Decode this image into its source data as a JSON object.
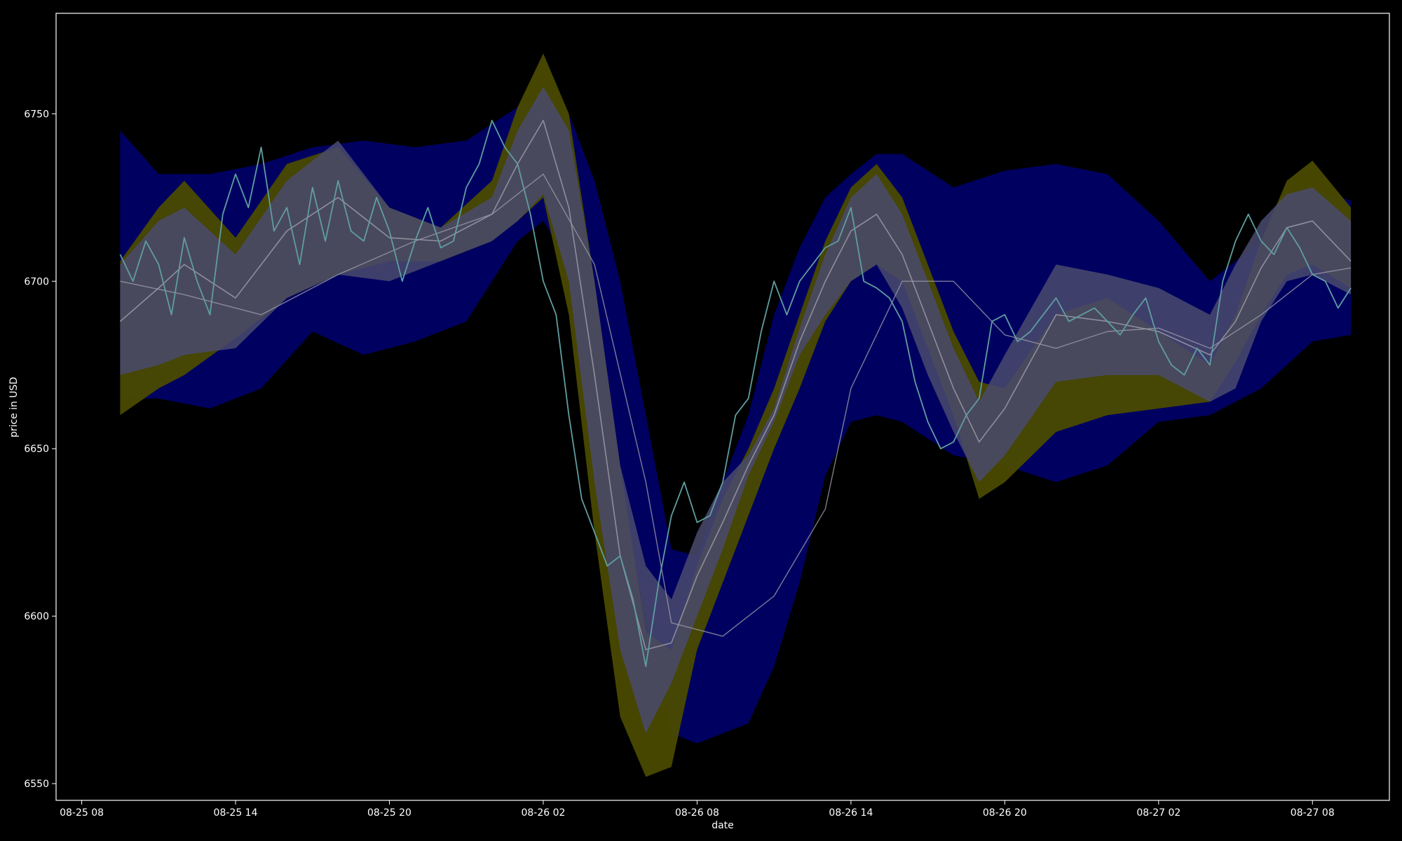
{
  "chart_data": {
    "type": "area",
    "title": "",
    "xlabel": "date",
    "ylabel": "price in USD",
    "xlim": [
      "2018-08-25 07:00",
      "2018-08-27 11:00"
    ],
    "ylim": [
      6545,
      6780
    ],
    "grid": false,
    "legend": "none",
    "x_ticks": [
      "08-25 08",
      "08-25 14",
      "08-25 20",
      "08-26 02",
      "08-26 08",
      "08-26 14",
      "08-26 20",
      "08-27 02",
      "08-27 08"
    ],
    "y_ticks": [
      6550,
      6600,
      6650,
      6700,
      6750
    ],
    "colors": {
      "background": "#000000",
      "frame": "#ffffff",
      "text": "#ffffff",
      "outer_band": "#000066",
      "yellow_band": "#4a4a00",
      "inner_band": "#4a4a6e",
      "price_line": "#5f9ea0",
      "mean_line": "#9a9aa6"
    },
    "series": [
      {
        "role": "outer-band",
        "x": [
          "2018-08-25 09:30",
          "2018-08-25 11:00",
          "2018-08-25 13:00",
          "2018-08-25 15:00",
          "2018-08-25 17:00",
          "2018-08-25 19:00",
          "2018-08-25 21:00",
          "2018-08-25 23:00",
          "2018-08-26 01:00",
          "2018-08-26 02:00",
          "2018-08-26 03:00",
          "2018-08-26 04:00",
          "2018-08-26 05:00",
          "2018-08-26 06:00",
          "2018-08-26 07:00",
          "2018-08-26 08:00",
          "2018-08-26 09:00",
          "2018-08-26 10:00",
          "2018-08-26 11:00",
          "2018-08-26 12:00",
          "2018-08-26 13:00",
          "2018-08-26 14:00",
          "2018-08-26 15:00",
          "2018-08-26 16:00",
          "2018-08-26 18:00",
          "2018-08-26 20:00",
          "2018-08-26 22:00",
          "2018-08-27 00:00",
          "2018-08-27 02:00",
          "2018-08-27 04:00",
          "2018-08-27 06:00",
          "2018-08-27 08:00",
          "2018-08-27 09:30"
        ],
        "upper": [
          6745,
          6732,
          6732,
          6735,
          6740,
          6742,
          6740,
          6742,
          6752,
          6756,
          6750,
          6730,
          6700,
          6660,
          6620,
          6618,
          6640,
          6660,
          6690,
          6710,
          6725,
          6732,
          6738,
          6738,
          6728,
          6733,
          6735,
          6732,
          6718,
          6700,
          6712,
          6728,
          6724
        ],
        "lower": [
          6665,
          6665,
          6662,
          6668,
          6685,
          6678,
          6682,
          6688,
          6712,
          6718,
          6705,
          6680,
          6640,
          6600,
          6565,
          6562,
          6565,
          6568,
          6585,
          6610,
          6642,
          6658,
          6660,
          6658,
          6648,
          6645,
          6640,
          6645,
          6658,
          6660,
          6668,
          6682,
          6684
        ]
      },
      {
        "role": "yellow-band",
        "x": [
          "2018-08-25 09:30",
          "2018-08-25 11:00",
          "2018-08-25 12:00",
          "2018-08-25 14:00",
          "2018-08-25 16:00",
          "2018-08-25 18:00",
          "2018-08-25 20:00",
          "2018-08-25 22:00",
          "2018-08-26 00:00",
          "2018-08-26 01:00",
          "2018-08-26 02:00",
          "2018-08-26 03:00",
          "2018-08-26 04:00",
          "2018-08-26 05:00",
          "2018-08-26 06:00",
          "2018-08-26 07:00",
          "2018-08-26 08:00",
          "2018-08-26 09:00",
          "2018-08-26 10:00",
          "2018-08-26 11:00",
          "2018-08-26 12:00",
          "2018-08-26 13:00",
          "2018-08-26 14:00",
          "2018-08-26 15:00",
          "2018-08-26 16:00",
          "2018-08-26 17:00",
          "2018-08-26 18:00",
          "2018-08-26 19:00",
          "2018-08-26 20:00",
          "2018-08-26 22:00",
          "2018-08-27 00:00",
          "2018-08-27 02:00",
          "2018-08-27 04:00",
          "2018-08-27 05:00",
          "2018-08-27 06:00",
          "2018-08-27 07:00",
          "2018-08-27 08:00",
          "2018-08-27 09:30"
        ],
        "upper": [
          6706,
          6722,
          6730,
          6713,
          6735,
          6740,
          6722,
          6716,
          6730,
          6752,
          6768,
          6750,
          6700,
          6645,
          6595,
          6590,
          6615,
          6635,
          6650,
          6668,
          6690,
          6712,
          6728,
          6735,
          6725,
          6705,
          6685,
          6670,
          6668,
          6690,
          6695,
          6685,
          6675,
          6690,
          6712,
          6730,
          6736,
          6722
        ],
        "lower": [
          6660,
          6668,
          6672,
          6683,
          6695,
          6702,
          6706,
          6706,
          6712,
          6718,
          6725,
          6690,
          6625,
          6570,
          6552,
          6555,
          6590,
          6610,
          6630,
          6650,
          6668,
          6688,
          6700,
          6705,
          6700,
          6680,
          6660,
          6635,
          6640,
          6655,
          6660,
          6662,
          6664,
          6676,
          6690,
          6702,
          6705,
          6698
        ]
      },
      {
        "role": "inner-band",
        "x": [
          "2018-08-25 09:30",
          "2018-08-25 11:00",
          "2018-08-25 12:00",
          "2018-08-25 14:00",
          "2018-08-25 16:00",
          "2018-08-25 18:00",
          "2018-08-25 20:00",
          "2018-08-25 22:00",
          "2018-08-26 00:00",
          "2018-08-26 01:00",
          "2018-08-26 02:00",
          "2018-08-26 03:00",
          "2018-08-26 04:00",
          "2018-08-26 05:00",
          "2018-08-26 06:00",
          "2018-08-26 07:00",
          "2018-08-26 08:00",
          "2018-08-26 09:00",
          "2018-08-26 10:00",
          "2018-08-26 11:00",
          "2018-08-26 12:00",
          "2018-08-26 13:00",
          "2018-08-26 14:00",
          "2018-08-26 15:00",
          "2018-08-26 16:00",
          "2018-08-26 17:00",
          "2018-08-26 18:00",
          "2018-08-26 19:00",
          "2018-08-26 20:00",
          "2018-08-26 22:00",
          "2018-08-27 00:00",
          "2018-08-27 02:00",
          "2018-08-27 04:00",
          "2018-08-27 05:00",
          "2018-08-27 06:00",
          "2018-08-27 07:00",
          "2018-08-27 08:00",
          "2018-08-27 09:30"
        ],
        "upper": [
          6705,
          6718,
          6722,
          6708,
          6730,
          6742,
          6722,
          6716,
          6725,
          6745,
          6758,
          6745,
          6700,
          6645,
          6615,
          6605,
          6625,
          6640,
          6648,
          6662,
          6686,
          6708,
          6725,
          6732,
          6720,
          6700,
          6680,
          6664,
          6678,
          6705,
          6702,
          6698,
          6690,
          6705,
          6718,
          6726,
          6728,
          6718
        ],
        "lower": [
          6672,
          6675,
          6678,
          6680,
          6695,
          6702,
          6700,
          6706,
          6712,
          6718,
          6726,
          6700,
          6640,
          6590,
          6565,
          6580,
          6600,
          6620,
          6642,
          6658,
          6678,
          6690,
          6700,
          6705,
          6692,
          6672,
          6655,
          6640,
          6648,
          6670,
          6672,
          6672,
          6664,
          6668,
          6688,
          6700,
          6702,
          6696
        ]
      },
      {
        "role": "fast-mean",
        "x": [
          "2018-08-25 09:30",
          "2018-08-25 11:00",
          "2018-08-25 12:00",
          "2018-08-25 14:00",
          "2018-08-25 16:00",
          "2018-08-25 18:00",
          "2018-08-25 20:00",
          "2018-08-25 22:00",
          "2018-08-26 00:00",
          "2018-08-26 01:00",
          "2018-08-26 02:00",
          "2018-08-26 03:00",
          "2018-08-26 04:00",
          "2018-08-26 05:00",
          "2018-08-26 06:00",
          "2018-08-26 07:00",
          "2018-08-26 08:00",
          "2018-08-26 09:00",
          "2018-08-26 10:00",
          "2018-08-26 11:00",
          "2018-08-26 12:00",
          "2018-08-26 13:00",
          "2018-08-26 14:00",
          "2018-08-26 15:00",
          "2018-08-26 16:00",
          "2018-08-26 17:00",
          "2018-08-26 18:00",
          "2018-08-26 19:00",
          "2018-08-26 20:00",
          "2018-08-26 22:00",
          "2018-08-27 00:00",
          "2018-08-27 02:00",
          "2018-08-27 04:00",
          "2018-08-27 05:00",
          "2018-08-27 06:00",
          "2018-08-27 07:00",
          "2018-08-27 08:00",
          "2018-08-27 09:30"
        ],
        "values": [
          6688,
          6698,
          6705,
          6695,
          6715,
          6725,
          6713,
          6712,
          6720,
          6735,
          6748,
          6722,
          6672,
          6618,
          6590,
          6592,
          6612,
          6628,
          6645,
          6660,
          6682,
          6700,
          6715,
          6720,
          6708,
          6688,
          6668,
          6652,
          6662,
          6690,
          6688,
          6685,
          6678,
          6688,
          6704,
          6716,
          6718,
          6706
        ]
      },
      {
        "role": "slow-mean",
        "x": [
          "2018-08-25 09:30",
          "2018-08-25 12:00",
          "2018-08-25 15:00",
          "2018-08-25 18:00",
          "2018-08-25 21:00",
          "2018-08-26 00:00",
          "2018-08-26 02:00",
          "2018-08-26 04:00",
          "2018-08-26 06:00",
          "2018-08-26 07:00",
          "2018-08-26 09:00",
          "2018-08-26 11:00",
          "2018-08-26 13:00",
          "2018-08-26 14:00",
          "2018-08-26 16:00",
          "2018-08-26 18:00",
          "2018-08-26 20:00",
          "2018-08-26 22:00",
          "2018-08-27 00:00",
          "2018-08-27 02:00",
          "2018-08-27 04:00",
          "2018-08-27 06:00",
          "2018-08-27 08:00",
          "2018-08-27 09:30"
        ],
        "values": [
          6700,
          6696,
          6690,
          6702,
          6712,
          6720,
          6732,
          6705,
          6640,
          6598,
          6594,
          6606,
          6632,
          6668,
          6700,
          6700,
          6684,
          6680,
          6685,
          6686,
          6680,
          6690,
          6702,
          6704
        ]
      },
      {
        "role": "price",
        "x": [
          "2018-08-25 09:30",
          "2018-08-25 10:00",
          "2018-08-25 10:30",
          "2018-08-25 11:00",
          "2018-08-25 11:30",
          "2018-08-25 12:00",
          "2018-08-25 12:30",
          "2018-08-25 13:00",
          "2018-08-25 13:30",
          "2018-08-25 14:00",
          "2018-08-25 14:30",
          "2018-08-25 15:00",
          "2018-08-25 15:30",
          "2018-08-25 16:00",
          "2018-08-25 16:30",
          "2018-08-25 17:00",
          "2018-08-25 17:30",
          "2018-08-25 18:00",
          "2018-08-25 18:30",
          "2018-08-25 19:00",
          "2018-08-25 19:30",
          "2018-08-25 20:00",
          "2018-08-25 20:30",
          "2018-08-25 21:00",
          "2018-08-25 21:30",
          "2018-08-25 22:00",
          "2018-08-25 22:30",
          "2018-08-25 23:00",
          "2018-08-25 23:30",
          "2018-08-26 00:00",
          "2018-08-26 00:30",
          "2018-08-26 01:00",
          "2018-08-26 01:30",
          "2018-08-26 02:00",
          "2018-08-26 02:30",
          "2018-08-26 03:00",
          "2018-08-26 03:30",
          "2018-08-26 04:00",
          "2018-08-26 04:30",
          "2018-08-26 05:00",
          "2018-08-26 05:30",
          "2018-08-26 06:00",
          "2018-08-26 06:30",
          "2018-08-26 07:00",
          "2018-08-26 07:30",
          "2018-08-26 08:00",
          "2018-08-26 08:30",
          "2018-08-26 09:00",
          "2018-08-26 09:30",
          "2018-08-26 10:00",
          "2018-08-26 10:30",
          "2018-08-26 11:00",
          "2018-08-26 11:30",
          "2018-08-26 12:00",
          "2018-08-26 12:30",
          "2018-08-26 13:00",
          "2018-08-26 13:30",
          "2018-08-26 14:00",
          "2018-08-26 14:30",
          "2018-08-26 15:00",
          "2018-08-26 15:30",
          "2018-08-26 16:00",
          "2018-08-26 16:30",
          "2018-08-26 17:00",
          "2018-08-26 17:30",
          "2018-08-26 18:00",
          "2018-08-26 18:30",
          "2018-08-26 19:00",
          "2018-08-26 19:30",
          "2018-08-26 20:00",
          "2018-08-26 20:30",
          "2018-08-26 21:00",
          "2018-08-26 21:30",
          "2018-08-26 22:00",
          "2018-08-26 22:30",
          "2018-08-26 23:00",
          "2018-08-26 23:30",
          "2018-08-27 00:00",
          "2018-08-27 00:30",
          "2018-08-27 01:00",
          "2018-08-27 01:30",
          "2018-08-27 02:00",
          "2018-08-27 02:30",
          "2018-08-27 03:00",
          "2018-08-27 03:30",
          "2018-08-27 04:00",
          "2018-08-27 04:30",
          "2018-08-27 05:00",
          "2018-08-27 05:30",
          "2018-08-27 06:00",
          "2018-08-27 06:30",
          "2018-08-27 07:00",
          "2018-08-27 07:30",
          "2018-08-27 08:00",
          "2018-08-27 08:30",
          "2018-08-27 09:00",
          "2018-08-27 09:30"
        ],
        "values": [
          6708,
          6700,
          6712,
          6705,
          6690,
          6713,
          6700,
          6690,
          6720,
          6732,
          6722,
          6740,
          6715,
          6722,
          6705,
          6728,
          6712,
          6730,
          6715,
          6712,
          6725,
          6715,
          6700,
          6712,
          6722,
          6710,
          6712,
          6728,
          6735,
          6748,
          6740,
          6735,
          6720,
          6700,
          6690,
          6660,
          6635,
          6625,
          6615,
          6618,
          6605,
          6585,
          6610,
          6630,
          6640,
          6628,
          6630,
          6640,
          6660,
          6665,
          6685,
          6700,
          6690,
          6700,
          6705,
          6710,
          6712,
          6722,
          6700,
          6698,
          6695,
          6688,
          6670,
          6658,
          6650,
          6652,
          6660,
          6665,
          6688,
          6690,
          6682,
          6685,
          6690,
          6695,
          6688,
          6690,
          6692,
          6688,
          6684,
          6690,
          6695,
          6682,
          6675,
          6672,
          6680,
          6675,
          6700,
          6712,
          6720,
          6712,
          6708,
          6716,
          6710,
          6702,
          6700,
          6692,
          6698
        ]
      }
    ]
  }
}
